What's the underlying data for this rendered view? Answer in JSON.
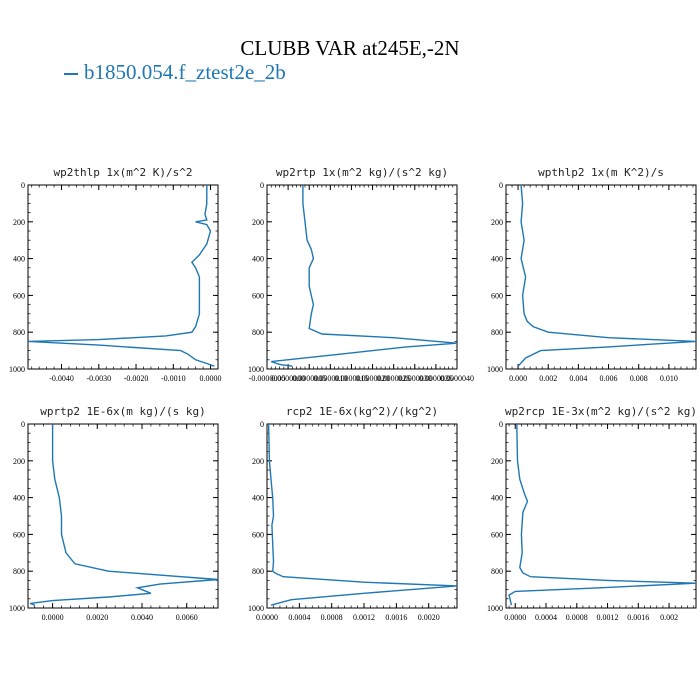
{
  "figure": {
    "title": "CLUBB VAR at245E,-2N",
    "legend": [
      "b1850.054.f_ztest2e_2b"
    ],
    "colors": {
      "series": "#1f77b4",
      "axes": "#000000"
    }
  },
  "chart_data": [
    {
      "type": "line",
      "title": "wp2thlp  1x(m^2 K)/s^2",
      "xlim": [
        -0.0049,
        0.0002
      ],
      "ylim": [
        1000,
        0
      ],
      "xticks": [
        -0.004,
        -0.003,
        -0.002,
        -0.001,
        0.0
      ],
      "xtick_labels": [
        "-0.0040",
        "-0.0030",
        "-0.0020",
        "-0.0010",
        "0.0000"
      ],
      "yticks": [
        0,
        200,
        400,
        600,
        800,
        1000
      ],
      "ytick_labels": [
        "0",
        "200",
        "400",
        "600",
        "800",
        "1000"
      ],
      "series": [
        {
          "name": "b1850.054.f_ztest2e_2b",
          "x": [
            -0.0001,
            -0.0001,
            -0.00015,
            -0.0001,
            -0.0004,
            -0.0001,
            0.0,
            -0.0001,
            -0.0003,
            -0.0005,
            -0.0004,
            -0.0003,
            -0.0003,
            -0.0003,
            -0.0003,
            -0.0004,
            -0.0005,
            -0.0012,
            -0.003,
            -0.0049,
            -0.003,
            -0.0008,
            -0.0006,
            -0.0004,
            -0.0001,
            0.0001
          ],
          "y": [
            0,
            100,
            160,
            190,
            200,
            215,
            250,
            320,
            380,
            420,
            450,
            500,
            550,
            600,
            700,
            770,
            800,
            820,
            840,
            850,
            870,
            900,
            920,
            950,
            970,
            985
          ]
        }
      ]
    },
    {
      "type": "line",
      "title": "wp2rtp  1x(m^2 kg)/(s^2 kg)",
      "xlim": [
        -5e-07,
        4e-06
      ],
      "ylim": [
        1000,
        0
      ],
      "xticks": [
        -5e-07,
        0.0,
        5e-07,
        1e-06,
        1.5e-06,
        2e-06,
        2.5e-06,
        3e-06,
        3.5e-06,
        4e-06
      ],
      "xtick_labels": [
        "-0.0000005",
        "0.0000000",
        "0.0000005",
        "0.0000010",
        "0.0000015",
        "0.0000020",
        "0.0000025",
        "0.0000030",
        "0.0000035",
        "0.0000040"
      ],
      "yticks": [
        0,
        200,
        400,
        600,
        800,
        1000
      ],
      "ytick_labels": [
        "0",
        "200",
        "400",
        "600",
        "800",
        "1000"
      ],
      "series": [
        {
          "name": "b1850.054.f_ztest2e_2b",
          "x": [
            3.5e-07,
            3.5e-07,
            4e-07,
            4.5e-07,
            5.5e-07,
            6e-07,
            5e-07,
            5e-07,
            5.5e-07,
            6e-07,
            5.5e-07,
            5e-07,
            8e-07,
            2.5e-06,
            4e-06,
            2.8e-06,
            1.2e-06,
            -4e-07,
            -2e-07,
            1e-07
          ],
          "y": [
            0,
            100,
            200,
            300,
            350,
            400,
            450,
            550,
            600,
            650,
            700,
            780,
            810,
            830,
            860,
            880,
            920,
            960,
            975,
            985
          ]
        }
      ]
    },
    {
      "type": "line",
      "title": "wpthlp2  1x(m K^2)/s",
      "xlim": [
        -0.0008,
        0.0118
      ],
      "ylim": [
        1000,
        0
      ],
      "xticks": [
        0.0,
        0.002,
        0.004,
        0.006,
        0.008,
        0.01
      ],
      "xtick_labels": [
        "0.000",
        "0.002",
        "0.004",
        "0.006",
        "0.008",
        "0.010"
      ],
      "yticks": [
        0,
        200,
        400,
        600,
        800,
        1000
      ],
      "ytick_labels": [
        "0",
        "200",
        "400",
        "600",
        "800",
        "1000"
      ],
      "series": [
        {
          "name": "b1850.054.f_ztest2e_2b",
          "x": [
            0.0002,
            0.0003,
            0.0002,
            0.0004,
            0.0002,
            0.0005,
            0.0003,
            0.0004,
            0.0006,
            0.001,
            0.002,
            0.006,
            0.0118,
            0.006,
            0.0015,
            0.0005,
            0.0
          ],
          "y": [
            0,
            100,
            200,
            300,
            400,
            500,
            600,
            700,
            740,
            770,
            800,
            830,
            850,
            880,
            900,
            940,
            985
          ]
        }
      ]
    },
    {
      "type": "line",
      "title": "wprtp2  1E-6x(m kg)/(s kg)",
      "xlim": [
        -0.0011,
        0.0074
      ],
      "ylim": [
        1000,
        0
      ],
      "xticks": [
        0.0,
        0.002,
        0.004,
        0.006
      ],
      "xtick_labels": [
        "0.0000",
        "0.0020",
        "0.0040",
        "0.0060"
      ],
      "yticks": [
        0,
        200,
        400,
        600,
        800,
        1000
      ],
      "ytick_labels": [
        "0",
        "200",
        "400",
        "600",
        "800",
        "1000"
      ],
      "series": [
        {
          "name": "b1850.054.f_ztest2e_2b",
          "x": [
            0.0,
            0.0,
            0.0001,
            0.0003,
            0.0004,
            0.0004,
            0.0006,
            0.001,
            0.0025,
            0.0074,
            0.0048,
            0.0038,
            0.0044,
            0.0025,
            0.0,
            -0.001,
            -0.0008
          ],
          "y": [
            0,
            200,
            300,
            400,
            500,
            600,
            700,
            760,
            800,
            845,
            870,
            890,
            920,
            940,
            960,
            975,
            985
          ]
        }
      ]
    },
    {
      "type": "line",
      "title": "rcp2  1E-6x(kg^2)/(kg^2)",
      "xlim": [
        0.0,
        0.00235
      ],
      "ylim": [
        1000,
        0
      ],
      "xticks": [
        0.0,
        0.0004,
        0.0008,
        0.0012,
        0.0016,
        0.002
      ],
      "xtick_labels": [
        "0.0000",
        "0.0004",
        "0.0008",
        "0.0012",
        "0.0016",
        "0.0020"
      ],
      "yticks": [
        0,
        200,
        400,
        600,
        800,
        1000
      ],
      "ytick_labels": [
        "0",
        "200",
        "400",
        "600",
        "800",
        "1000"
      ],
      "series": [
        {
          "name": "b1850.054.f_ztest2e_2b",
          "x": [
            2e-05,
            3e-05,
            5e-05,
            7e-05,
            8e-05,
            6e-05,
            7e-05,
            8e-05,
            7e-05,
            0.0001,
            0.0002,
            0.0012,
            0.00235,
            0.0012,
            0.0003,
            5e-05
          ],
          "y": [
            0,
            200,
            300,
            400,
            500,
            550,
            650,
            750,
            800,
            810,
            830,
            860,
            880,
            920,
            955,
            985
          ]
        }
      ]
    },
    {
      "type": "line",
      "title": "wp2rcp  1E-3x(m^2 kg)/(s^2 kg)",
      "xlim": [
        -0.00012,
        0.00235
      ],
      "ylim": [
        1000,
        0
      ],
      "xticks": [
        0.0,
        0.0004,
        0.0008,
        0.0012,
        0.0016,
        0.002
      ],
      "xtick_labels": [
        "0.0000",
        "0.0004",
        "0.0008",
        "0.0012",
        "0.0016",
        "0.002"
      ],
      "yticks": [
        0,
        200,
        400,
        600,
        800,
        1000
      ],
      "ytick_labels": [
        "0",
        "200",
        "400",
        "600",
        "800",
        "1000"
      ],
      "series": [
        {
          "name": "b1850.054.f_ztest2e_2b",
          "x": [
            2e-05,
            3e-05,
            6e-05,
            0.00012,
            0.00016,
            0.0001,
            8e-05,
            9e-05,
            6e-05,
            0.0001,
            0.0002,
            0.0012,
            0.00235,
            0.0011,
            0.0,
            -8e-05,
            -5e-05
          ],
          "y": [
            0,
            200,
            300,
            380,
            420,
            480,
            600,
            700,
            780,
            810,
            830,
            850,
            865,
            890,
            910,
            930,
            985
          ]
        }
      ]
    }
  ]
}
